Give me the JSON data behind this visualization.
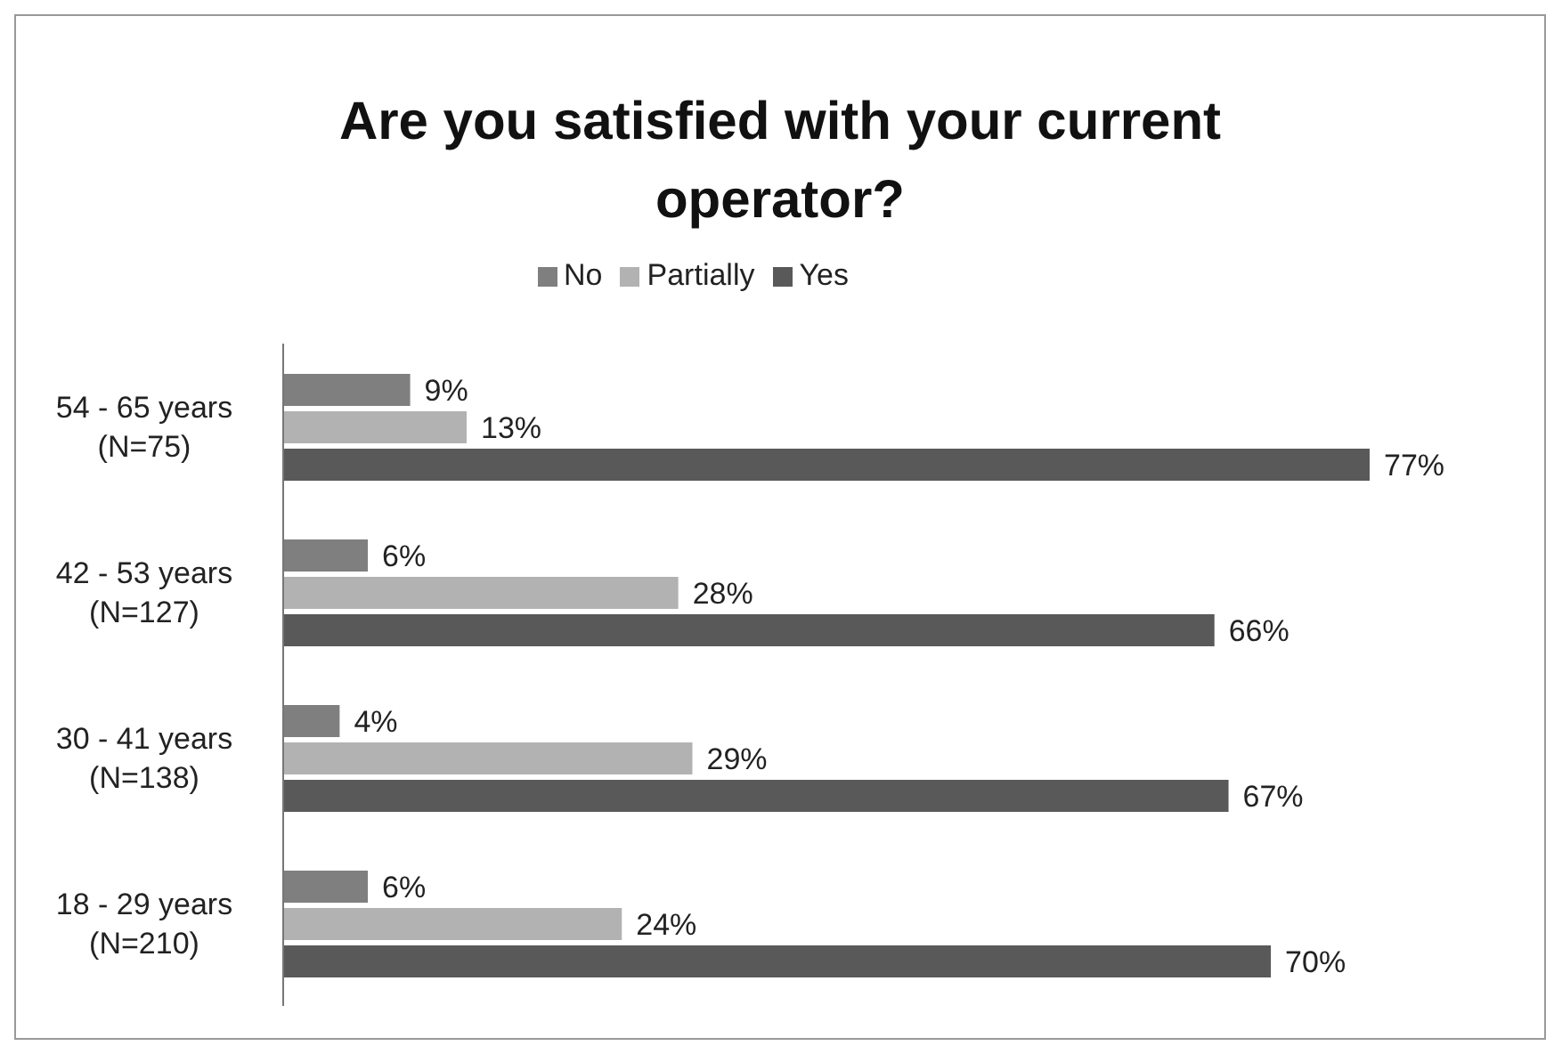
{
  "chart_data": {
    "type": "bar",
    "orientation": "horizontal",
    "title": "Are you satisfied with your current operator?",
    "categories": [
      "54 - 65 years\n(N=75)",
      "42 - 53 years\n(N=127)",
      "30 - 41 years\n(N=138)",
      "18 - 29 years\n(N=210)"
    ],
    "series": [
      {
        "name": "No",
        "color": "#7f7f7f",
        "values": [
          9,
          6,
          4,
          6
        ],
        "value_labels": [
          "9%",
          "6%",
          "4%",
          "6%"
        ]
      },
      {
        "name": "Partially",
        "color": "#b2b2b2",
        "values": [
          13,
          28,
          29,
          24
        ],
        "value_labels": [
          "13%",
          "28%",
          "29%",
          "24%"
        ]
      },
      {
        "name": "Yes",
        "color": "#595959",
        "values": [
          77,
          66,
          67,
          70
        ],
        "value_labels": [
          "77%",
          "66%",
          "67%",
          "70%"
        ]
      }
    ],
    "legend": "top"
  }
}
